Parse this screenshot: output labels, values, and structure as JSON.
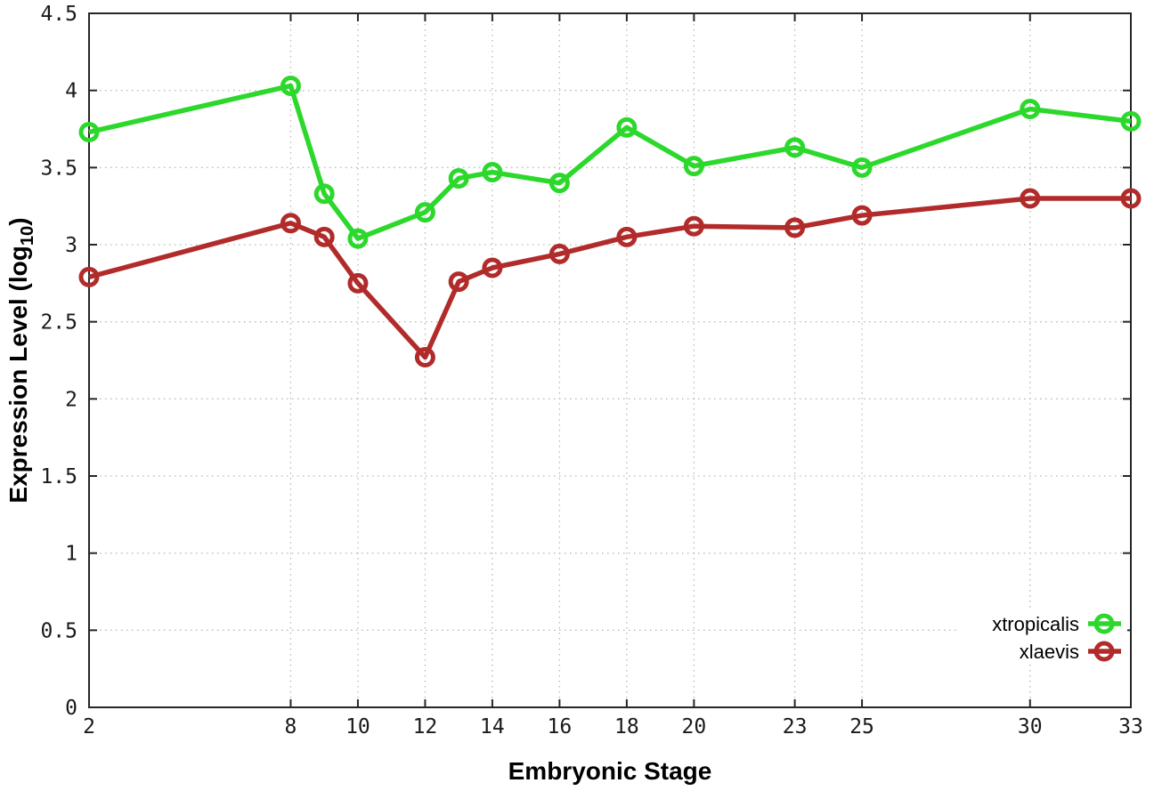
{
  "chart_data": {
    "type": "line",
    "title": "",
    "xlabel": "Embryonic Stage",
    "ylabel": {
      "prefix": "Expression Level (log",
      "sub": "10",
      "suffix": ")"
    },
    "x": [
      2,
      8,
      9,
      10,
      12,
      13,
      14,
      16,
      18,
      20,
      23,
      25,
      30,
      33
    ],
    "series": [
      {
        "name": "xtropicalis",
        "color": "#2bd82b",
        "values": [
          3.73,
          4.03,
          3.33,
          3.04,
          3.21,
          3.43,
          3.47,
          3.4,
          3.76,
          3.51,
          3.63,
          3.5,
          3.88,
          3.8
        ]
      },
      {
        "name": "xlaevis",
        "color": "#b22b2b",
        "values": [
          2.79,
          3.14,
          3.05,
          2.75,
          2.27,
          2.76,
          2.85,
          2.94,
          3.05,
          3.12,
          3.11,
          3.19,
          3.3,
          3.3
        ]
      }
    ],
    "xlim": [
      2,
      33
    ],
    "ylim": [
      0,
      4.5
    ],
    "x_ticks": [
      2,
      8,
      10,
      12,
      14,
      16,
      18,
      20,
      23,
      25,
      30,
      33
    ],
    "x_tick_labels": [
      "2",
      "8",
      "10",
      "12",
      "14",
      "16",
      "18",
      "20",
      "23",
      "25",
      "30",
      "33"
    ],
    "y_ticks": [
      0,
      0.5,
      1,
      1.5,
      2,
      2.5,
      3,
      3.5,
      4,
      4.5
    ],
    "y_tick_labels": [
      "0",
      "0.5",
      "1",
      "1.5",
      "2",
      "2.5",
      "3",
      "3.5",
      "4",
      "4.5"
    ],
    "grid": true,
    "legend_position": "bottom-right",
    "legend": [
      "xtropicalis",
      "xlaevis"
    ]
  },
  "colors": {
    "background": "#ffffff",
    "border": "#262626",
    "grid": "#b8b8b8",
    "tick_text": "#1a1a1a",
    "series_green": "#2bd82b",
    "series_red": "#b22b2b"
  }
}
